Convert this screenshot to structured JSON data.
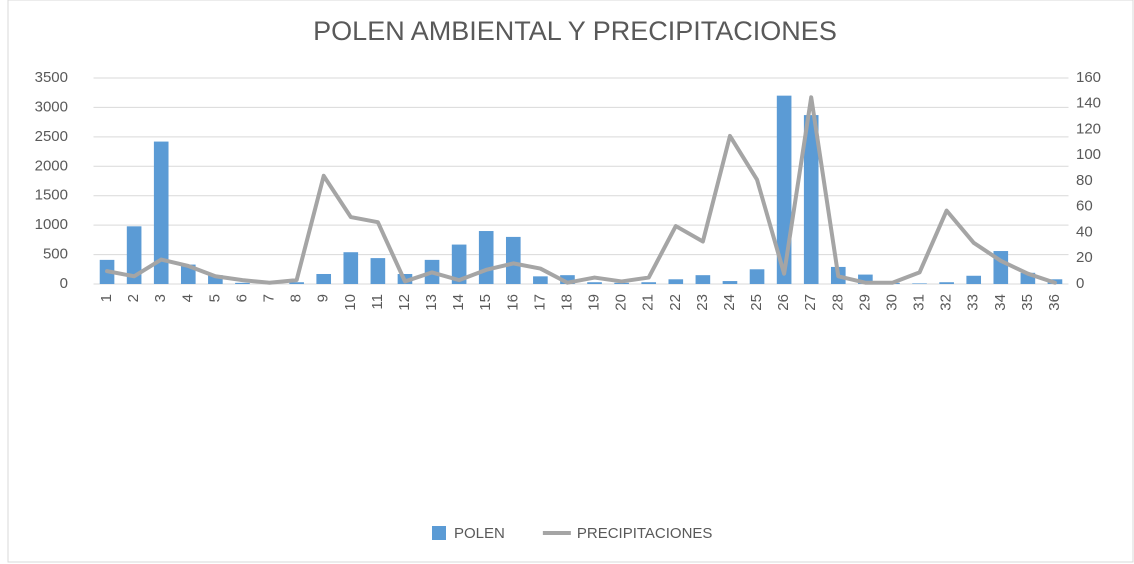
{
  "chart_data": {
    "type": "bar_line",
    "title": "POLEN AMBIENTAL Y PRECIPITACIONES",
    "categories": [
      "1",
      "2",
      "3",
      "4",
      "5",
      "6",
      "7",
      "8",
      "9",
      "10",
      "11",
      "12",
      "13",
      "14",
      "15",
      "16",
      "17",
      "18",
      "19",
      "20",
      "21",
      "22",
      "23",
      "24",
      "25",
      "26",
      "27",
      "28",
      "29",
      "30",
      "31",
      "32",
      "33",
      "34",
      "35",
      "36"
    ],
    "series": [
      {
        "name": "POLEN",
        "type": "bar",
        "color": "#5b9bd5",
        "values": [
          410,
          980,
          2420,
          330,
          150,
          20,
          10,
          30,
          170,
          540,
          440,
          170,
          410,
          670,
          900,
          800,
          130,
          150,
          30,
          20,
          30,
          80,
          150,
          50,
          250,
          3200,
          2870,
          290,
          160,
          20,
          10,
          30,
          140,
          560,
          190,
          80
        ]
      },
      {
        "name": "PRECIPITACIONES",
        "type": "line",
        "axis": "y2",
        "color": "#a5a5a5",
        "values": [
          10,
          6,
          19,
          14,
          6,
          3,
          1,
          3,
          84,
          52,
          48,
          2,
          9,
          3,
          11,
          16,
          12,
          1,
          5,
          2,
          5,
          45,
          33,
          115,
          81,
          8,
          145,
          6,
          1,
          1,
          9,
          57,
          32,
          18,
          8,
          1
        ]
      }
    ],
    "ylim": [
      0,
      3500
    ],
    "yticks": [
      0,
      500,
      1000,
      1500,
      2000,
      2500,
      3000,
      3500
    ],
    "y2lim": [
      0,
      160
    ],
    "y2ticks": [
      0,
      20,
      40,
      60,
      80,
      100,
      120,
      140,
      160
    ],
    "grid": true,
    "legend": "bottom"
  }
}
